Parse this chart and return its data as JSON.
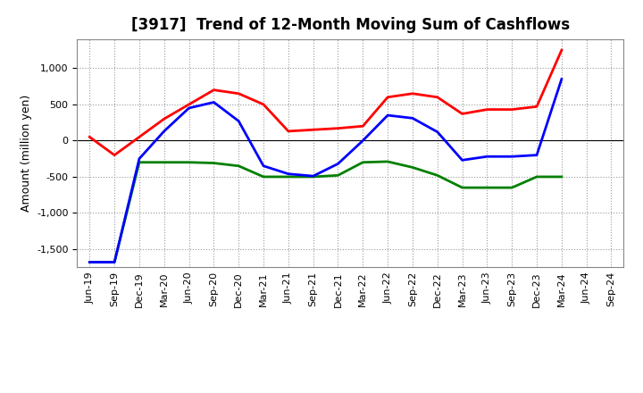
{
  "title": "[3917]  Trend of 12-Month Moving Sum of Cashflows",
  "ylabel": "Amount (million yen)",
  "background_color": "#ffffff",
  "plot_background": "#ffffff",
  "grid_color": "#999999",
  "x_labels": [
    "Jun-19",
    "Sep-19",
    "Dec-19",
    "Mar-20",
    "Jun-20",
    "Sep-20",
    "Dec-20",
    "Mar-21",
    "Jun-21",
    "Sep-21",
    "Dec-21",
    "Mar-22",
    "Jun-22",
    "Sep-22",
    "Dec-22",
    "Mar-23",
    "Jun-23",
    "Sep-23",
    "Dec-23",
    "Mar-24",
    "Jun-24",
    "Sep-24"
  ],
  "operating": [
    50,
    -200,
    50,
    300,
    500,
    700,
    650,
    500,
    130,
    150,
    170,
    200,
    600,
    650,
    600,
    370,
    430,
    430,
    470,
    1250,
    null,
    null
  ],
  "investing": [
    -1680,
    -1680,
    -300,
    -300,
    -300,
    -310,
    -350,
    -500,
    -500,
    -500,
    -480,
    -300,
    -290,
    -370,
    -480,
    -650,
    -650,
    -650,
    -500,
    -500,
    null,
    null
  ],
  "free": [
    -1680,
    -1680,
    -250,
    130,
    450,
    530,
    270,
    -350,
    -460,
    -490,
    -320,
    0,
    350,
    310,
    120,
    -270,
    -220,
    -220,
    -200,
    850,
    null,
    null
  ],
  "operating_color": "#ff0000",
  "investing_color": "#008000",
  "free_color": "#0000ff",
  "ylim": [
    -1750,
    1400
  ],
  "yticks": [
    -1500,
    -1000,
    -500,
    0,
    500,
    1000
  ],
  "linewidth": 2.0,
  "title_fontsize": 12,
  "axis_label_fontsize": 9,
  "tick_fontsize": 8,
  "legend_fontsize": 9
}
